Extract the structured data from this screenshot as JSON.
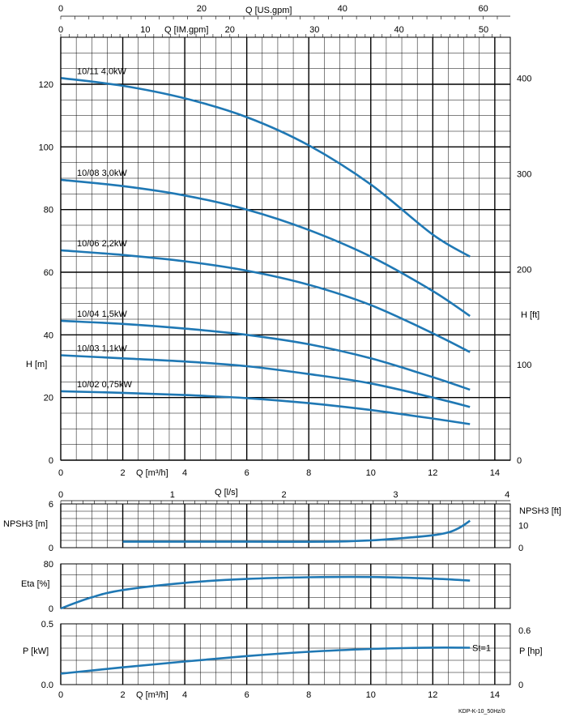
{
  "chart_data": [
    {
      "type": "line",
      "title": "",
      "xlabel": "Q [m³/h]",
      "ylabel": "H [m]",
      "y2label": "H [ft]",
      "top_axis_1_label": "Q [US.gpm]",
      "top_axis_2_label": "Q [IM.gpm]",
      "xlim": [
        0,
        14.5
      ],
      "ylim": [
        0,
        135
      ],
      "x_ticks": [
        "0",
        "2",
        "4",
        "6",
        "8",
        "10",
        "12",
        "14"
      ],
      "y_ticks": [
        "0",
        "20",
        "40",
        "60",
        "80",
        "100",
        "120"
      ],
      "y2_ticks": [
        "0",
        "100",
        "200",
        "300",
        "400"
      ],
      "us_gpm_ticks": [
        "0",
        "20",
        "40",
        "60"
      ],
      "im_gpm_ticks": [
        "0",
        "10",
        "20",
        "30",
        "40",
        "50"
      ],
      "series": [
        {
          "name": "10/11 4,0kW",
          "x": [
            0,
            2,
            4,
            6,
            8,
            10,
            12,
            13.2
          ],
          "values": [
            122,
            119.5,
            115.5,
            109.5,
            100.5,
            88,
            72,
            65
          ]
        },
        {
          "name": "10/08 3,0kW",
          "x": [
            0,
            2,
            4,
            6,
            8,
            10,
            12,
            13.2
          ],
          "values": [
            89.5,
            87.5,
            84.5,
            80,
            73.5,
            65,
            54,
            46
          ]
        },
        {
          "name": "10/06 2,2kW",
          "x": [
            0,
            2,
            4,
            6,
            8,
            10,
            12,
            13.2
          ],
          "values": [
            67,
            65.5,
            63.5,
            60.5,
            56,
            49.5,
            40.5,
            34.5
          ]
        },
        {
          "name": "10/04 1,5kW",
          "x": [
            0,
            2,
            4,
            6,
            8,
            10,
            12,
            13.2
          ],
          "values": [
            44.5,
            43.5,
            42,
            40,
            37,
            32.5,
            26.5,
            22.5
          ]
        },
        {
          "name": "10/03 1,1kW",
          "x": [
            0,
            2,
            4,
            6,
            8,
            10,
            12,
            13.2
          ],
          "values": [
            33.5,
            32.5,
            31.5,
            30,
            27.5,
            24.5,
            20,
            17
          ]
        },
        {
          "name": "10/02 0,75kW",
          "x": [
            0,
            2,
            4,
            6,
            8,
            10,
            12,
            13.2
          ],
          "values": [
            22,
            21.5,
            20.8,
            19.8,
            18.2,
            16,
            13.3,
            11.5
          ]
        }
      ],
      "grid": true,
      "legend": "inline labels"
    },
    {
      "type": "line",
      "ylabel": "NPSH3 [m]",
      "y2label": "NPSH3 [ft]",
      "top_axis_label": "Q [l/s]",
      "top_axis_ticks": [
        "0",
        "1",
        "2",
        "3",
        "4"
      ],
      "ylim": [
        0,
        6
      ],
      "y_ticks": [
        "0",
        "6"
      ],
      "y2_ticks": [
        "0",
        "10"
      ],
      "series": [
        {
          "x": [
            2,
            4,
            6,
            8.6,
            10,
            11,
            12,
            12.5,
            12.8,
            13,
            13.2
          ],
          "values": [
            0.82,
            0.82,
            0.82,
            0.82,
            1.0,
            1.3,
            1.7,
            2.1,
            2.6,
            3.1,
            3.7
          ]
        }
      ],
      "grid": true
    },
    {
      "type": "line",
      "ylabel": "Eta [%]",
      "ylim": [
        0,
        80
      ],
      "y_ticks": [
        "0",
        "80"
      ],
      "series": [
        {
          "x": [
            0,
            1,
            2,
            4,
            6,
            8,
            10,
            12,
            13.2
          ],
          "values": [
            0,
            20,
            33,
            46,
            53,
            56,
            56.5,
            53.5,
            50
          ]
        }
      ],
      "grid": true
    },
    {
      "type": "line",
      "xlabel": "Q [m³/h]",
      "ylabel": "P [kW]",
      "y2label": "P [hp]",
      "ylim": [
        0,
        0.5
      ],
      "y_ticks": [
        "0.0",
        "0.5"
      ],
      "y2_ticks": [
        "0",
        "0.6"
      ],
      "x_ticks": [
        "0",
        "2",
        "4",
        "6",
        "8",
        "10",
        "12",
        "14"
      ],
      "series": [
        {
          "name": "St=1",
          "x": [
            0,
            2,
            4,
            6,
            8,
            10,
            12,
            13.2
          ],
          "values": [
            0.09,
            0.142,
            0.19,
            0.235,
            0.27,
            0.293,
            0.304,
            0.303
          ]
        }
      ],
      "grid": true
    }
  ],
  "footer_code": "KDP-K-10_50Hz/0",
  "colors": {
    "curve": "#1f78b4",
    "grid": "#000000"
  }
}
